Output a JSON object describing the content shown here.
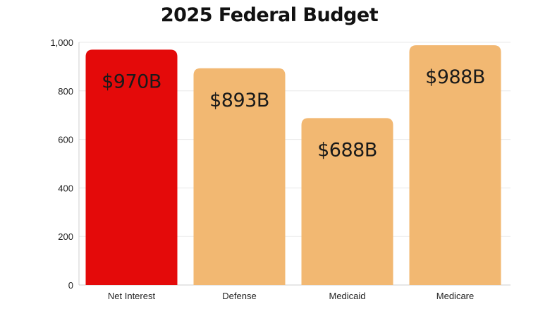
{
  "chart_data": {
    "type": "bar",
    "title": "2025 Federal Budget",
    "categories": [
      "Net Interest",
      "Defense",
      "Medicaid",
      "Medicare"
    ],
    "values": [
      970,
      893,
      688,
      988
    ],
    "data_labels": [
      "$970B",
      "$893B",
      "$688B",
      "$988B"
    ],
    "bar_colors": [
      "#e40a0a",
      "#f2b872",
      "#f2b872",
      "#f2b872"
    ],
    "ylim": [
      0,
      1000
    ],
    "yticks": [
      0,
      200,
      400,
      600,
      800,
      1000
    ],
    "ytick_labels": [
      "0",
      "200",
      "400",
      "600",
      "800",
      "1,000"
    ],
    "xlabel": "",
    "ylabel": "",
    "grid": true,
    "legend": "none"
  }
}
